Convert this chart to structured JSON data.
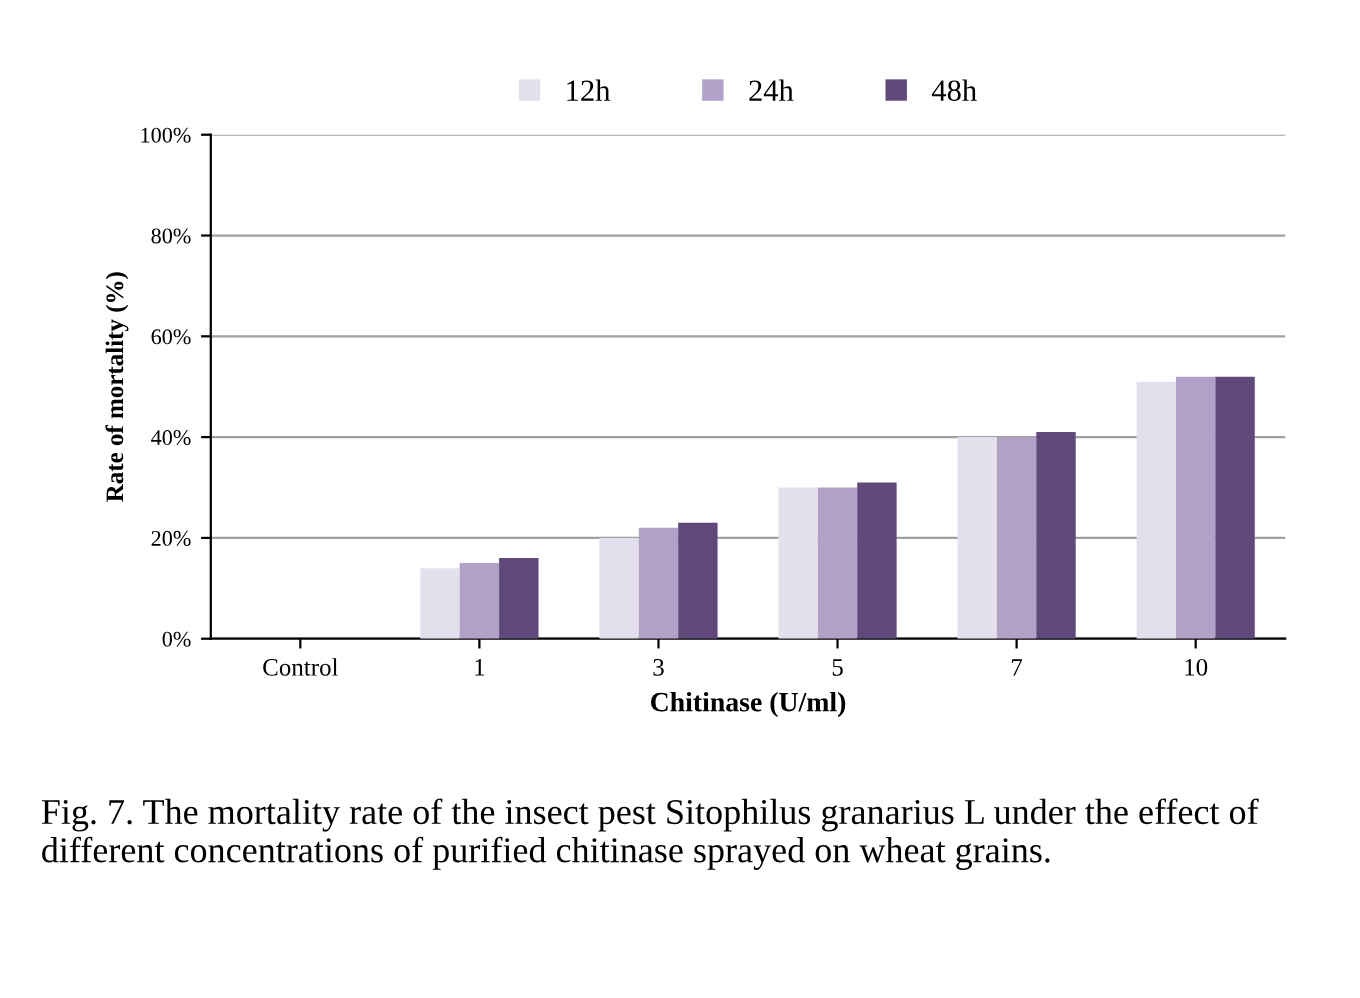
{
  "chart_data": {
    "type": "bar",
    "xlabel": "Chitinase (U/ml)",
    "ylabel": "Rate of mortality (%)",
    "categories": [
      "Control",
      "1",
      "3",
      "5",
      "7",
      "10"
    ],
    "series": [
      {
        "name": "12h",
        "color": "#e4dfec",
        "values": [
          0,
          14,
          20,
          30,
          40,
          51
        ]
      },
      {
        "name": "24h",
        "color": "#b1a0c7",
        "values": [
          0,
          15,
          22,
          30,
          40,
          52
        ]
      },
      {
        "name": "48h",
        "color": "#60497a",
        "values": [
          0,
          16,
          23,
          31,
          41,
          52
        ]
      }
    ],
    "ylim": [
      0,
      100
    ],
    "yticks": [
      {
        "value": 0,
        "label": "0%"
      },
      {
        "value": 20,
        "label": "20%"
      },
      {
        "value": 40,
        "label": "40%"
      },
      {
        "value": 60,
        "label": "60%"
      },
      {
        "value": 80,
        "label": "80%"
      },
      {
        "value": 100,
        "label": "100%"
      }
    ],
    "grid": "y",
    "legend": "top",
    "annotations": [
      "Fig. 7. The mortality rate of the insect pest Sitophilus granarius L under the effect of different concentrations of purified chitinase sprayed on wheat grains."
    ]
  }
}
